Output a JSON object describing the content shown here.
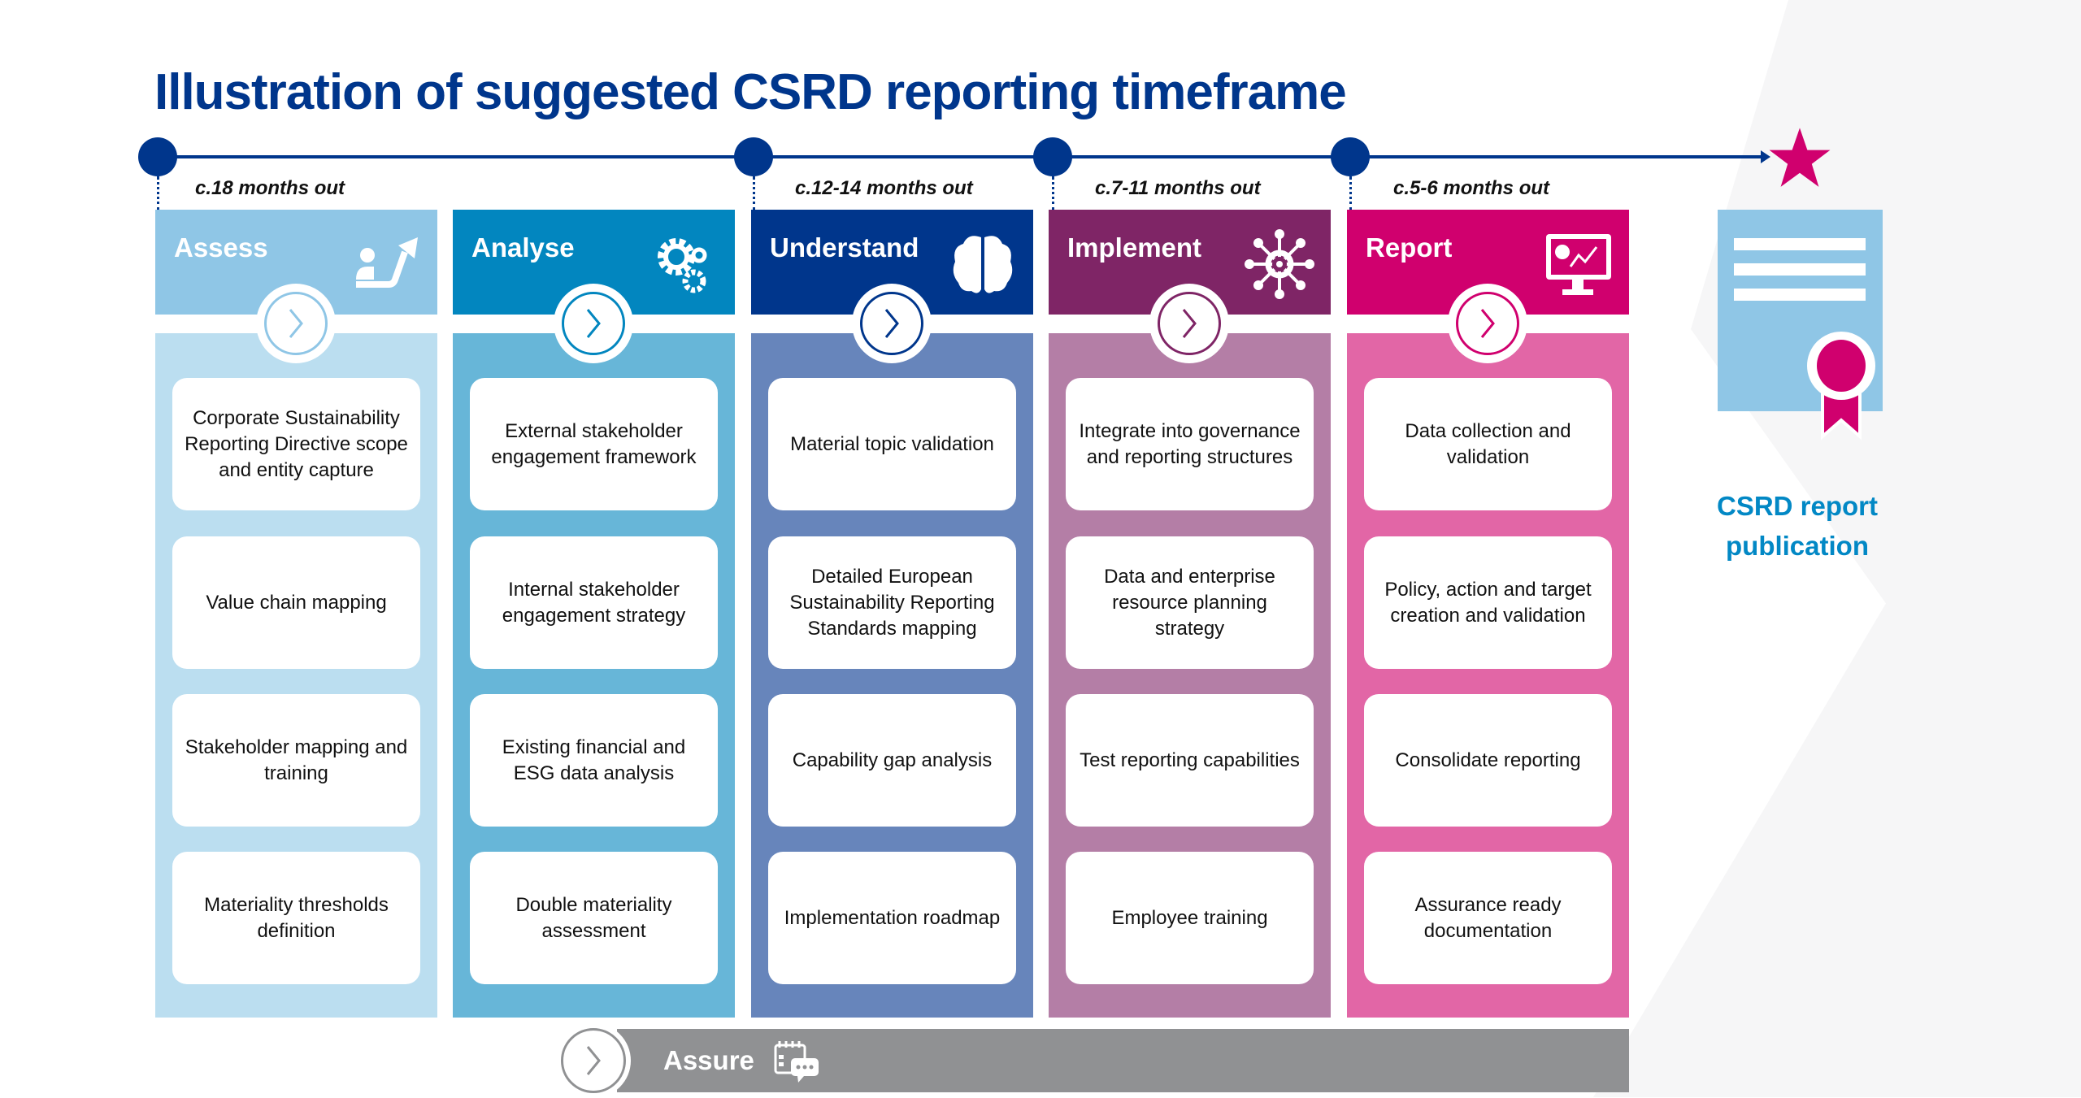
{
  "title": "Illustration of suggested CSRD reporting timeframe",
  "timeline": {
    "milestones": [
      "c.18 months out",
      "c.12-14 months out",
      "c.7-11 months out",
      "c.5-6 months out"
    ],
    "end_icon": "star-icon",
    "colors": {
      "line": "#00368c",
      "star": "#d0006e"
    }
  },
  "phases": [
    {
      "label": "Assess",
      "icon": "person-growth-icon",
      "header_color": "#8fc6e6",
      "body_color": "#bbdef0",
      "cards": [
        "Corporate Sustainability Reporting Directive scope and entity capture",
        "Value chain mapping",
        "Stakeholder mapping and training",
        "Materiality thresholds definition"
      ]
    },
    {
      "label": "Analyse",
      "icon": "gears-icon",
      "header_color": "#0286bf",
      "body_color": "#67b6d8",
      "cards": [
        "External stakeholder engagement framework",
        "Internal stakeholder engagement strategy",
        "Existing financial and ESG data analysis",
        "Double materiality assessment"
      ]
    },
    {
      "label": "Understand",
      "icon": "brain-icon",
      "header_color": "#00368c",
      "body_color": "#6785bb",
      "cards": [
        "Material topic validation",
        "Detailed European Sustainability Reporting Standards mapping",
        "Capability gap analysis",
        "Implementation roadmap"
      ]
    },
    {
      "label": "Implement",
      "icon": "network-gear-icon",
      "header_color": "#7f2566",
      "body_color": "#b47ea6",
      "cards": [
        "Integrate into governance and reporting structures",
        "Data and enterprise resource planning strategy",
        "Test reporting capabilities",
        "Employee training"
      ]
    },
    {
      "label": "Report",
      "icon": "monitor-chart-icon",
      "header_color": "#d0006e",
      "body_color": "#e266a6",
      "cards": [
        "Data collection and validation",
        "Policy, action and target creation and validation",
        "Consolidate reporting",
        "Assurance ready documentation"
      ]
    }
  ],
  "publication": {
    "label": "CSRD report publication",
    "icon": "certificate-icon",
    "color": "#0288c5"
  },
  "assure": {
    "label": "Assure",
    "icon": "calendar-chat-icon",
    "color": "#909193"
  }
}
